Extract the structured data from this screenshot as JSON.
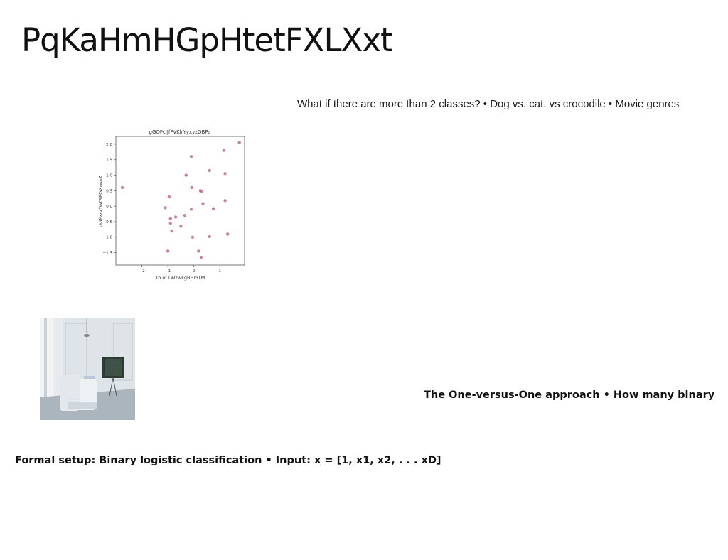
{
  "slide": {
    "title": "PqKaHmHGpHtetFXLXxt",
    "body_text_1": "What if there are more than 2 classes? • Dog vs. cat. vs crocodile • Movie genres",
    "body_text_2": "The One-versus-One approach • How many binary",
    "body_text_3": "Formal setup: Binary logistic classification • Input: x = [1, x1, x2, . . . xD]"
  },
  "photo": {
    "icon": "interior-room-photo",
    "colors": {
      "wall": "#dfe4e8",
      "floor": "#aab5bd",
      "sofa": "#eef1f4",
      "tv": "#2f3a36"
    }
  },
  "chart_data": {
    "type": "scatter",
    "title": "gGQFcIJfFVKlrYyxyzQBPa",
    "xlabel": "Xb oCLWzwFgBHmTM",
    "ylabel": "kJkNMxxq TkVFRIRCVXyVpeZ",
    "xlim": [
      -3.0,
      1.95
    ],
    "ylim": [
      -1.9,
      2.25
    ],
    "xticks": [
      -2,
      -1,
      0,
      1
    ],
    "yticks": [
      -1.5,
      -1.0,
      -0.5,
      0.0,
      0.5,
      1.0,
      1.5,
      2.0
    ],
    "xtick_labels": [
      "−2",
      "−1",
      "0",
      "1"
    ],
    "ytick_labels": [
      "−1.5",
      "−1.0",
      "−0.5",
      "0.0",
      "0.5",
      "1.0",
      "1.5",
      "2.0"
    ],
    "marker_color": "#c2708a",
    "grid": false,
    "series": [
      {
        "x": [
          -2.75,
          -1.1,
          -0.95,
          -0.9,
          -0.9,
          -0.85,
          -0.7,
          -0.5,
          -0.35,
          -0.3,
          -0.1,
          -0.1,
          -0.08,
          -0.05,
          0.18,
          0.25,
          0.28,
          0.3,
          0.35,
          0.6,
          0.6,
          0.75,
          1.15,
          1.2,
          1.2,
          1.3,
          1.75,
          -1.0
        ],
        "y": [
          0.6,
          -0.05,
          0.3,
          -0.4,
          -0.55,
          -0.8,
          -0.35,
          -0.65,
          -0.3,
          1.0,
          1.6,
          -0.1,
          0.6,
          -1.0,
          -1.45,
          0.5,
          -1.65,
          0.48,
          0.08,
          1.15,
          -0.98,
          -0.08,
          1.8,
          1.05,
          0.18,
          -0.9,
          2.05,
          -1.45
        ]
      }
    ]
  }
}
